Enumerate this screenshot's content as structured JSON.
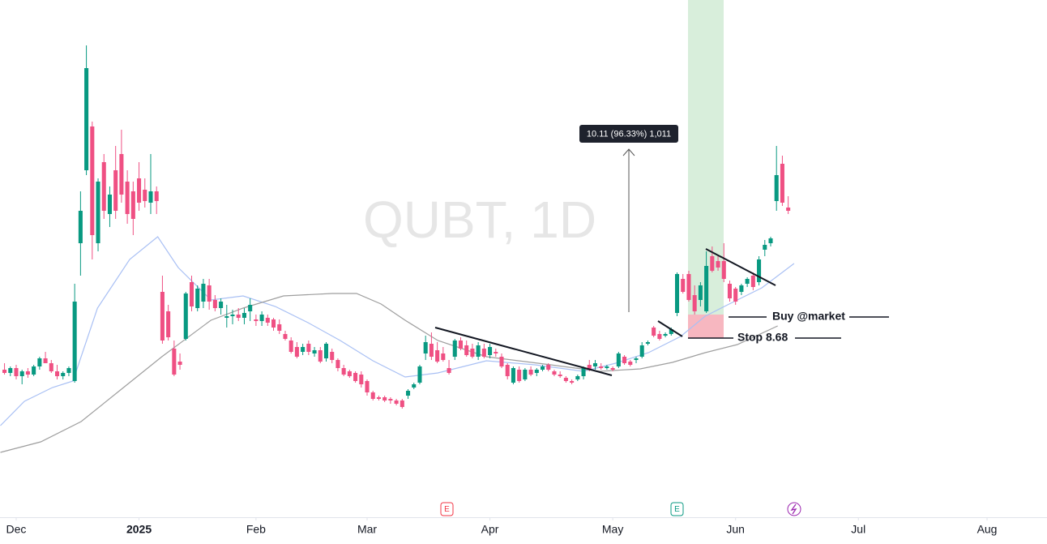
{
  "chart_data": {
    "type": "candlestick",
    "watermark": "QUBT, 1D",
    "annotations": {
      "measure": "10.11 (96.33%) 1,011",
      "buy": "Buy @market",
      "stop": "Stop 8.68"
    },
    "events": [
      "E",
      "E"
    ],
    "up_color": "#089981",
    "down_color": "#ef5083",
    "xlim": [
      -2.77,
      176.25
    ],
    "ylim": [
      -2,
      30
    ],
    "grid": false,
    "xticks": [
      {
        "value": 0,
        "label": "Dec"
      },
      {
        "value": 21,
        "label": "2025"
      },
      {
        "value": 41,
        "label": "Feb"
      },
      {
        "value": 60,
        "label": "Mar"
      },
      {
        "value": 81,
        "label": "Apr"
      },
      {
        "value": 102,
        "label": "May"
      },
      {
        "value": 123,
        "label": "Jun"
      },
      {
        "value": 144,
        "label": "Jul"
      },
      {
        "value": 166,
        "label": "Aug"
      }
    ],
    "x": [
      -2,
      -1,
      0,
      1,
      2,
      3,
      4,
      5,
      6,
      7,
      8,
      9,
      10,
      11,
      12,
      13,
      14,
      15,
      16,
      17,
      18,
      19,
      20,
      21,
      22,
      23,
      24,
      25,
      26,
      27,
      28,
      29,
      30,
      31,
      32,
      33,
      34,
      35,
      36,
      37,
      38,
      39,
      40,
      41,
      42,
      43,
      44,
      45,
      46,
      47,
      48,
      49,
      50,
      51,
      52,
      53,
      54,
      55,
      56,
      57,
      58,
      59,
      60,
      61,
      62,
      63,
      64,
      65,
      66,
      67,
      68,
      69,
      70,
      71,
      72,
      73,
      74,
      75,
      76,
      77,
      78,
      79,
      80,
      81,
      82,
      83,
      84,
      85,
      86,
      87,
      88,
      89,
      90,
      91,
      92,
      93,
      94,
      95,
      96,
      97,
      98,
      99,
      100,
      101,
      102,
      103,
      104,
      105,
      106,
      107,
      108,
      109,
      110,
      111,
      112,
      113,
      114,
      115,
      116,
      117,
      118,
      119,
      120,
      121,
      122,
      123,
      124,
      125,
      126,
      127,
      128,
      129,
      130,
      131,
      132
    ],
    "open": [
      7.2,
      7.0,
      7.3,
      6.8,
      7.1,
      6.9,
      7.4,
      7.9,
      7.6,
      7.1,
      6.8,
      7.0,
      6.5,
      15.0,
      19.5,
      22.2,
      15.0,
      20.0,
      16.8,
      19.5,
      20.5,
      18.8,
      18.2,
      19.0,
      18.3,
      17.5,
      18.2,
      12.0,
      10.8,
      8.5,
      7.7,
      9.1,
      12.6,
      11.0,
      11.4,
      12.4,
      11.5,
      11.0,
      10.4,
      10.5,
      10.6,
      10.4,
      10.8,
      10.3,
      10.2,
      10.4,
      10.3,
      10.0,
      9.4,
      9.0,
      8.6,
      8.3,
      8.8,
      8.2,
      8.4,
      7.9,
      8.3,
      7.8,
      7.3,
      7.1,
      7.0,
      6.9,
      6.5,
      5.8,
      5.5,
      5.5,
      5.4,
      5.3,
      5.3,
      5.6,
      6.1,
      6.4,
      8.2,
      8.8,
      8.4,
      8.2,
      7.3,
      8.0,
      9.0,
      8.7,
      8.5,
      8.0,
      8.5,
      8.1,
      8.3,
      8.0,
      7.5,
      6.4,
      7.2,
      6.6,
      7.2,
      7.0,
      7.2,
      7.5,
      7.1,
      6.9,
      6.7,
      6.5,
      6.6,
      6.8,
      7.5,
      7.4,
      7.4,
      7.3,
      7.3,
      7.4,
      8.0,
      7.7,
      7.8,
      8.0,
      8.8,
      9.8,
      9.4,
      9.3,
      9.4,
      10.7,
      12.8,
      13.1,
      11.8,
      11.5,
      10.8,
      14.2,
      13.9,
      13.9,
      12.5,
      12.2,
      12.0,
      12.5,
      13.0,
      12.6,
      14.6,
      15.0,
      17.6,
      19.9,
      17.2
    ],
    "high": [
      7.6,
      7.4,
      7.5,
      7.2,
      7.3,
      7.5,
      8.0,
      8.3,
      7.8,
      7.5,
      7.1,
      7.4,
      12.5,
      18.2,
      27.2,
      22.5,
      19.0,
      20.5,
      18.5,
      21.0,
      22.0,
      19.5,
      18.8,
      20.0,
      19.0,
      20.5,
      18.5,
      13.0,
      11.2,
      9.0,
      8.2,
      12.0,
      13.0,
      12.4,
      12.8,
      12.8,
      11.8,
      11.6,
      11.2,
      10.9,
      11.0,
      11.0,
      11.6,
      10.6,
      10.8,
      10.6,
      10.4,
      10.3,
      9.6,
      9.2,
      8.9,
      8.8,
      9.0,
      8.6,
      8.6,
      8.9,
      8.5,
      7.9,
      7.5,
      7.2,
      7.1,
      7.1,
      6.6,
      5.9,
      5.6,
      5.6,
      5.5,
      5.4,
      5.4,
      6.0,
      6.4,
      7.5,
      9.3,
      9.5,
      8.9,
      8.6,
      7.8,
      9.1,
      9.2,
      9.0,
      8.8,
      8.9,
      8.8,
      8.8,
      8.5,
      8.2,
      7.6,
      7.4,
      7.4,
      7.3,
      7.4,
      7.3,
      7.5,
      7.6,
      7.2,
      7.1,
      6.8,
      6.6,
      6.9,
      7.4,
      7.8,
      7.8,
      7.6,
      7.5,
      7.4,
      8.3,
      8.1,
      7.8,
      8.0,
      8.9,
      9.0,
      9.9,
      9.6,
      9.5,
      9.8,
      13.2,
      13.1,
      13.3,
      12.4,
      12.6,
      14.5,
      14.8,
      14.2,
      15.0,
      12.7,
      12.3,
      12.5,
      12.9,
      13.2,
      14.2,
      15.2,
      15.4,
      21.0,
      20.4,
      17.9
    ],
    "low": [
      6.9,
      6.8,
      6.6,
      6.3,
      6.7,
      6.8,
      7.2,
      7.6,
      7.0,
      6.6,
      6.6,
      6.8,
      6.4,
      13.0,
      19.2,
      14.0,
      14.5,
      16.5,
      16.0,
      16.5,
      17.5,
      16.2,
      15.5,
      17.0,
      17.2,
      16.8,
      16.8,
      8.8,
      9.0,
      6.8,
      7.2,
      9.0,
      10.8,
      10.8,
      11.0,
      10.9,
      10.8,
      10.6,
      9.8,
      10.0,
      10.2,
      10.0,
      10.2,
      9.9,
      9.9,
      9.9,
      9.6,
      9.4,
      9.0,
      8.2,
      7.9,
      8.1,
      8.1,
      8.0,
      7.6,
      7.7,
      7.6,
      7.1,
      6.8,
      6.7,
      6.4,
      6.1,
      5.6,
      5.3,
      5.3,
      5.2,
      5.1,
      5.0,
      4.8,
      5.4,
      6.0,
      6.3,
      7.8,
      7.8,
      7.6,
      7.7,
      6.9,
      7.8,
      8.4,
      8.0,
      7.9,
      7.8,
      7.9,
      7.9,
      8.0,
      7.3,
      6.6,
      6.3,
      6.4,
      6.5,
      6.8,
      6.8,
      7.1,
      7.1,
      6.8,
      6.7,
      6.4,
      6.3,
      6.5,
      6.6,
      7.1,
      7.2,
      7.2,
      7.2,
      7.1,
      7.3,
      7.5,
      7.4,
      7.6,
      7.9,
      8.7,
      9.2,
      9.0,
      9.2,
      9.3,
      10.5,
      11.9,
      11.4,
      10.6,
      11.1,
      10.7,
      13.2,
      13.3,
      12.6,
      11.4,
      11.2,
      11.8,
      12.3,
      12.1,
      12.4,
      14.2,
      14.8,
      17.0,
      17.3,
      16.8
    ],
    "close": [
      7.0,
      7.3,
      6.8,
      7.1,
      6.9,
      7.4,
      7.9,
      7.6,
      7.1,
      6.8,
      7.0,
      7.3,
      11.4,
      17.0,
      25.8,
      15.5,
      18.8,
      17.0,
      18.0,
      17.0,
      18.0,
      16.8,
      16.5,
      17.5,
      17.6,
      18.2,
      17.6,
      9.0,
      9.2,
      6.9,
      7.5,
      11.9,
      11.1,
      12.2,
      12.5,
      11.4,
      11.0,
      11.4,
      10.5,
      10.6,
      10.4,
      10.7,
      11.2,
      10.2,
      10.6,
      10.1,
      9.8,
      9.6,
      9.1,
      8.3,
      8.0,
      8.6,
      8.3,
      8.4,
      7.7,
      8.8,
      7.8,
      7.3,
      6.9,
      6.8,
      6.5,
      6.3,
      5.8,
      5.4,
      5.4,
      5.3,
      5.3,
      5.1,
      4.9,
      5.9,
      6.3,
      7.4,
      8.9,
      8.0,
      7.7,
      7.8,
      7.0,
      9.0,
      8.5,
      8.1,
      8.0,
      8.7,
      8.0,
      8.6,
      8.2,
      7.4,
      6.8,
      7.3,
      6.5,
      7.2,
      6.9,
      7.2,
      7.4,
      7.2,
      6.9,
      6.8,
      6.5,
      6.4,
      6.8,
      7.3,
      7.2,
      7.6,
      7.3,
      7.4,
      7.2,
      8.2,
      7.6,
      7.5,
      7.9,
      8.7,
      8.9,
      9.3,
      9.1,
      9.4,
      9.7,
      13.1,
      12.0,
      11.5,
      10.8,
      12.4,
      13.6,
      13.3,
      13.5,
      12.8,
      11.6,
      11.4,
      12.4,
      12.8,
      12.3,
      14.0,
      14.9,
      15.3,
      19.2,
      17.5,
      17.0
    ],
    "series": [
      {
        "color": "#a9c0f4",
        "x": [
          -2.7,
          1.4,
          6.2,
          9.7,
          13.9,
          19.4,
          24.2,
          27.7,
          33.3,
          38.8,
          44.3,
          49.9,
          55.4,
          61.0,
          66.5,
          72.1,
          80.4,
          88.7,
          97.0,
          102.5,
          108.1,
          113.6,
          117.8,
          121.9,
          127.5,
          133.0
        ],
        "values": [
          3.75,
          5.25,
          6.1,
          6.5,
          11,
          14,
          15.4,
          13.5,
          11.5,
          11.75,
          11.1,
          10.1,
          9,
          7.75,
          6.75,
          7,
          7.75,
          7.5,
          7.1,
          7.6,
          8.25,
          9.25,
          10.5,
          11.25,
          12.25,
          13.75
        ]
      },
      {
        "color": "#9e9e9e",
        "x": [
          -2.7,
          4.2,
          11.1,
          18,
          24.9,
          33.3,
          38.8,
          45.7,
          54,
          58.2,
          62.4,
          66.5,
          72.1,
          80.4,
          91.4,
          99.8,
          106.7,
          112.2,
          117.8,
          123.3,
          130.2
        ],
        "values": [
          2.1,
          2.75,
          4,
          6,
          8,
          10.25,
          11,
          11.75,
          11.9,
          11.9,
          11.25,
          10.25,
          9,
          8,
          7.5,
          7.1,
          7.25,
          7.65,
          8.25,
          8.75,
          9.9
        ]
      }
    ]
  }
}
